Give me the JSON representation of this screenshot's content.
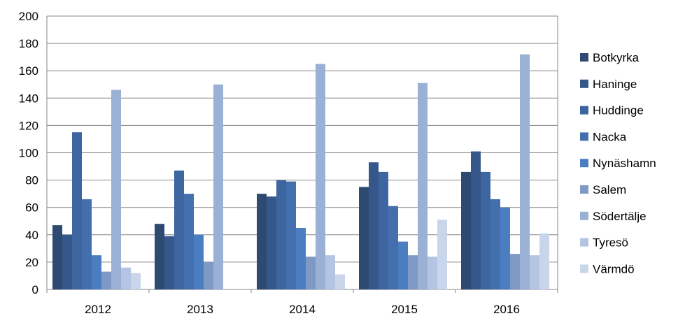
{
  "chart_data": {
    "type": "bar",
    "title": "",
    "xlabel": "",
    "ylabel": "",
    "ylim": [
      0,
      200
    ],
    "yticks": [
      0,
      20,
      40,
      60,
      80,
      100,
      120,
      140,
      160,
      180,
      200
    ],
    "grid": true,
    "legend_position": "right",
    "categories": [
      "2012",
      "2013",
      "2014",
      "2015",
      "2016"
    ],
    "series": [
      {
        "name": "Botkyrka",
        "color": "#2E4A72",
        "values": [
          47,
          48,
          70,
          75,
          86
        ]
      },
      {
        "name": "Haninge",
        "color": "#355789",
        "values": [
          40,
          39,
          68,
          93,
          101
        ]
      },
      {
        "name": "Huddinge",
        "color": "#3D65A0",
        "values": [
          115,
          87,
          80,
          86,
          86
        ]
      },
      {
        "name": "Nacka",
        "color": "#4370AD",
        "values": [
          66,
          70,
          79,
          61,
          66
        ]
      },
      {
        "name": "Nynäshamn",
        "color": "#4A7EC0",
        "values": [
          25,
          40,
          45,
          35,
          60
        ]
      },
      {
        "name": "Salem",
        "color": "#7E99C6",
        "values": [
          13,
          20,
          24,
          25,
          26
        ]
      },
      {
        "name": "Södertälje",
        "color": "#9BB0D5",
        "values": [
          146,
          150,
          165,
          151,
          172
        ]
      },
      {
        "name": "Tyresö",
        "color": "#B4C4E2",
        "values": [
          16,
          null,
          25,
          24,
          25
        ]
      },
      {
        "name": "Värmdö",
        "color": "#C9D5EA",
        "values": [
          12,
          null,
          11,
          51,
          41
        ]
      }
    ]
  }
}
